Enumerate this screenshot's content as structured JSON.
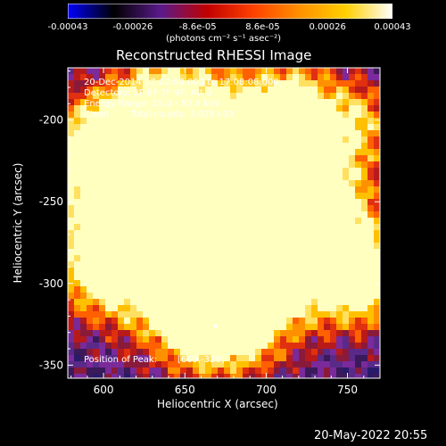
{
  "colorbar": {
    "ticks": [
      "-0.00043",
      "-0.00026",
      "-8.6e-05",
      "8.6e-05",
      "0.00026",
      "0.00043"
    ],
    "label": "(photons cm⁻² s⁻¹ asec⁻²)",
    "colormap": [
      "#0000ff",
      "#000000",
      "#5a1a8a",
      "#c00000",
      "#ff4000",
      "#ff9000",
      "#ffd000",
      "#ffffff"
    ]
  },
  "chart_data": {
    "type": "heatmap",
    "title": "Reconstructed RHESSI Image",
    "xlabel": "Heliocentric X (arcsec)",
    "ylabel": "Heliocentric Y (arcsec)",
    "xlim": [
      578,
      770
    ],
    "ylim": [
      -358,
      -168
    ],
    "x_ticks": [
      "600",
      "650",
      "700",
      "750"
    ],
    "y_ticks": [
      "-200",
      "-250",
      "-300",
      "-350"
    ],
    "peak": [
      669,
      -326
    ],
    "annotations": {
      "time": "20-Dec-2014 17:02:08.000 to 17:08:08.000",
      "detectors": "Detectors: 3F 6F 7F 9F, Att 0",
      "energy": "Energy Range: 25.0 - 50.0 keV",
      "clean": "Clean",
      "counts": "Total counts: 3.97E+03",
      "peak_label": "Position of Peak:",
      "peak_value": "[669,-326]"
    }
  },
  "footer": {
    "timestamp": "20-May-2022 20:55"
  }
}
